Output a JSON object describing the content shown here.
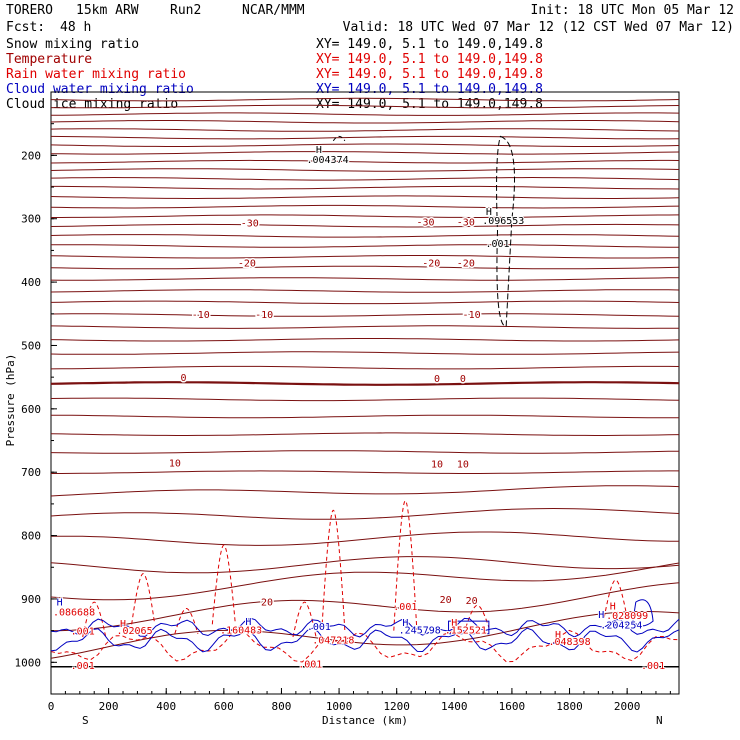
{
  "header": {
    "model": "TORERO",
    "resolution": "15km ARW",
    "run": "Run2",
    "org": "NCAR/MMM",
    "init": "Init: 18 UTC Mon 05 Mar 12",
    "fcst_label": "Fcst:",
    "fcst_value": "48 h",
    "valid": "Valid: 18 UTC Wed 07 Mar 12 (12 CST Wed 07 Mar 12)"
  },
  "legend": [
    {
      "name": "Snow mixing ratio",
      "color": "#000000",
      "xy": "XY= 149.0,  5.1 to 149.0,149.8"
    },
    {
      "name": "Temperature",
      "color": "#a00000",
      "xy": "XY= 149.0,  5.1 to 149.0,149.8"
    },
    {
      "name": "Rain water mixing ratio",
      "color": "#e00000",
      "xy": "XY= 149.0,  5.1 to 149.0,149.8"
    },
    {
      "name": "Cloud water mixing ratio",
      "color": "#0000c0",
      "xy": "XY= 149.0,  5.1 to 149.0,149.8"
    },
    {
      "name": "Cloud ice mixing ratio",
      "color": "#000000",
      "xy": "XY= 149.0,  5.1 to 149.0,149.8"
    }
  ],
  "chart_data": {
    "type": "cross-section contour",
    "xlabel": "Distance (km)",
    "ylabel": "Pressure (hPa)",
    "xlim": [
      0,
      2180
    ],
    "ylim": [
      1050,
      100
    ],
    "xticks": [
      0,
      200,
      400,
      600,
      800,
      1000,
      1200,
      1400,
      1600,
      1800,
      2000
    ],
    "yticks": [
      200,
      300,
      400,
      500,
      600,
      700,
      800,
      900,
      1000
    ],
    "direction_left": "S",
    "direction_right": "N",
    "temperature_levels": [
      {
        "label": "-30",
        "p": 300,
        "tilt": 12
      },
      {
        "label": "-20",
        "p": 360,
        "tilt": 10
      },
      {
        "label": "-10",
        "p": 445,
        "tilt": 12
      },
      {
        "label": "0",
        "p": 550,
        "tilt": 8
      },
      {
        "label": "10",
        "p": 685,
        "tilt": 10
      },
      {
        "label": "20",
        "p": 905,
        "tilt": 30
      }
    ],
    "temperature_label_positions": [
      {
        "label": "-30",
        "x": 690,
        "p": 306
      },
      {
        "label": "-30",
        "x": 1300,
        "p": 304
      },
      {
        "label": "-30",
        "x": 1440,
        "p": 304
      },
      {
        "label": "-20",
        "x": 680,
        "p": 369
      },
      {
        "label": "-20",
        "x": 1320,
        "p": 369
      },
      {
        "label": "-20",
        "x": 1440,
        "p": 369
      },
      {
        "label": "-10",
        "x": 520,
        "p": 450
      },
      {
        "label": "-10",
        "x": 740,
        "p": 450
      },
      {
        "label": "-10",
        "x": 1460,
        "p": 450
      },
      {
        "label": "0",
        "x": 460,
        "p": 550
      },
      {
        "label": "0",
        "x": 1340,
        "p": 551
      },
      {
        "label": "0",
        "x": 1430,
        "p": 551
      },
      {
        "label": "10",
        "x": 430,
        "p": 685
      },
      {
        "label": "10",
        "x": 1340,
        "p": 686
      },
      {
        "label": "10",
        "x": 1430,
        "p": 686
      },
      {
        "label": "20",
        "x": 750,
        "p": 904
      },
      {
        "label": "20",
        "x": 1370,
        "p": 900
      },
      {
        "label": "20",
        "x": 1460,
        "p": 902
      }
    ],
    "annotations": [
      {
        "text": "H",
        "x": 930,
        "p": 190,
        "color": "#000000"
      },
      {
        "text": ".004374",
        "x": 960,
        "p": 206,
        "color": "#000000"
      },
      {
        "text": "H",
        "x": 1520,
        "p": 288,
        "color": "#000000"
      },
      {
        "text": ".096553",
        "x": 1570,
        "p": 302,
        "color": "#000000"
      },
      {
        "text": ".001",
        "x": 1550,
        "p": 338,
        "color": "#000000"
      },
      {
        "text": ".001",
        "x": 1230,
        "p": 911,
        "color": "#e00000"
      },
      {
        "text": "H",
        "x": 30,
        "p": 904,
        "color": "#0000c0"
      },
      {
        "text": ".086688",
        "x": 80,
        "p": 920,
        "color": "#e00000"
      },
      {
        "text": ".001",
        "x": 110,
        "p": 950,
        "color": "#e00000"
      },
      {
        "text": "H",
        "x": 250,
        "p": 938,
        "color": "#e00000"
      },
      {
        "text": ".02065",
        "x": 290,
        "p": 949,
        "color": "#e00000"
      },
      {
        "text": "H",
        "x": 685,
        "p": 935,
        "color": "#0000c0"
      },
      {
        "text": ".160483",
        "x": 660,
        "p": 948,
        "color": "#e00000"
      },
      {
        "text": ".001",
        "x": 930,
        "p": 943,
        "color": "#0000c0"
      },
      {
        "text": ".047218",
        "x": 980,
        "p": 964,
        "color": "#e00000"
      },
      {
        "text": "H",
        "x": 1230,
        "p": 936,
        "color": "#0000c0"
      },
      {
        "text": ".245798",
        "x": 1280,
        "p": 948,
        "color": "#0000c0"
      },
      {
        "text": "H",
        "x": 1400,
        "p": 936,
        "color": "#e00000"
      },
      {
        "text": ".152521",
        "x": 1440,
        "p": 948,
        "color": "#e00000"
      },
      {
        "text": "H",
        "x": 1760,
        "p": 955,
        "color": "#e00000"
      },
      {
        "text": ".048398",
        "x": 1800,
        "p": 966,
        "color": "#e00000"
      },
      {
        "text": "H",
        "x": 1950,
        "p": 910,
        "color": "#e00000"
      },
      {
        "text": ".028099",
        "x": 2000,
        "p": 925,
        "color": "#e00000"
      },
      {
        "text": "H",
        "x": 1910,
        "p": 924,
        "color": "#0000c0"
      },
      {
        "text": ".204254",
        "x": 1980,
        "p": 940,
        "color": "#0000c0"
      },
      {
        "text": ".001",
        "x": 2090,
        "p": 1004,
        "color": "#e00000"
      },
      {
        "text": ".001",
        "x": 110,
        "p": 1004,
        "color": "#e00000"
      },
      {
        "text": ".001",
        "x": 900,
        "p": 1002,
        "color": "#e00000"
      }
    ]
  }
}
